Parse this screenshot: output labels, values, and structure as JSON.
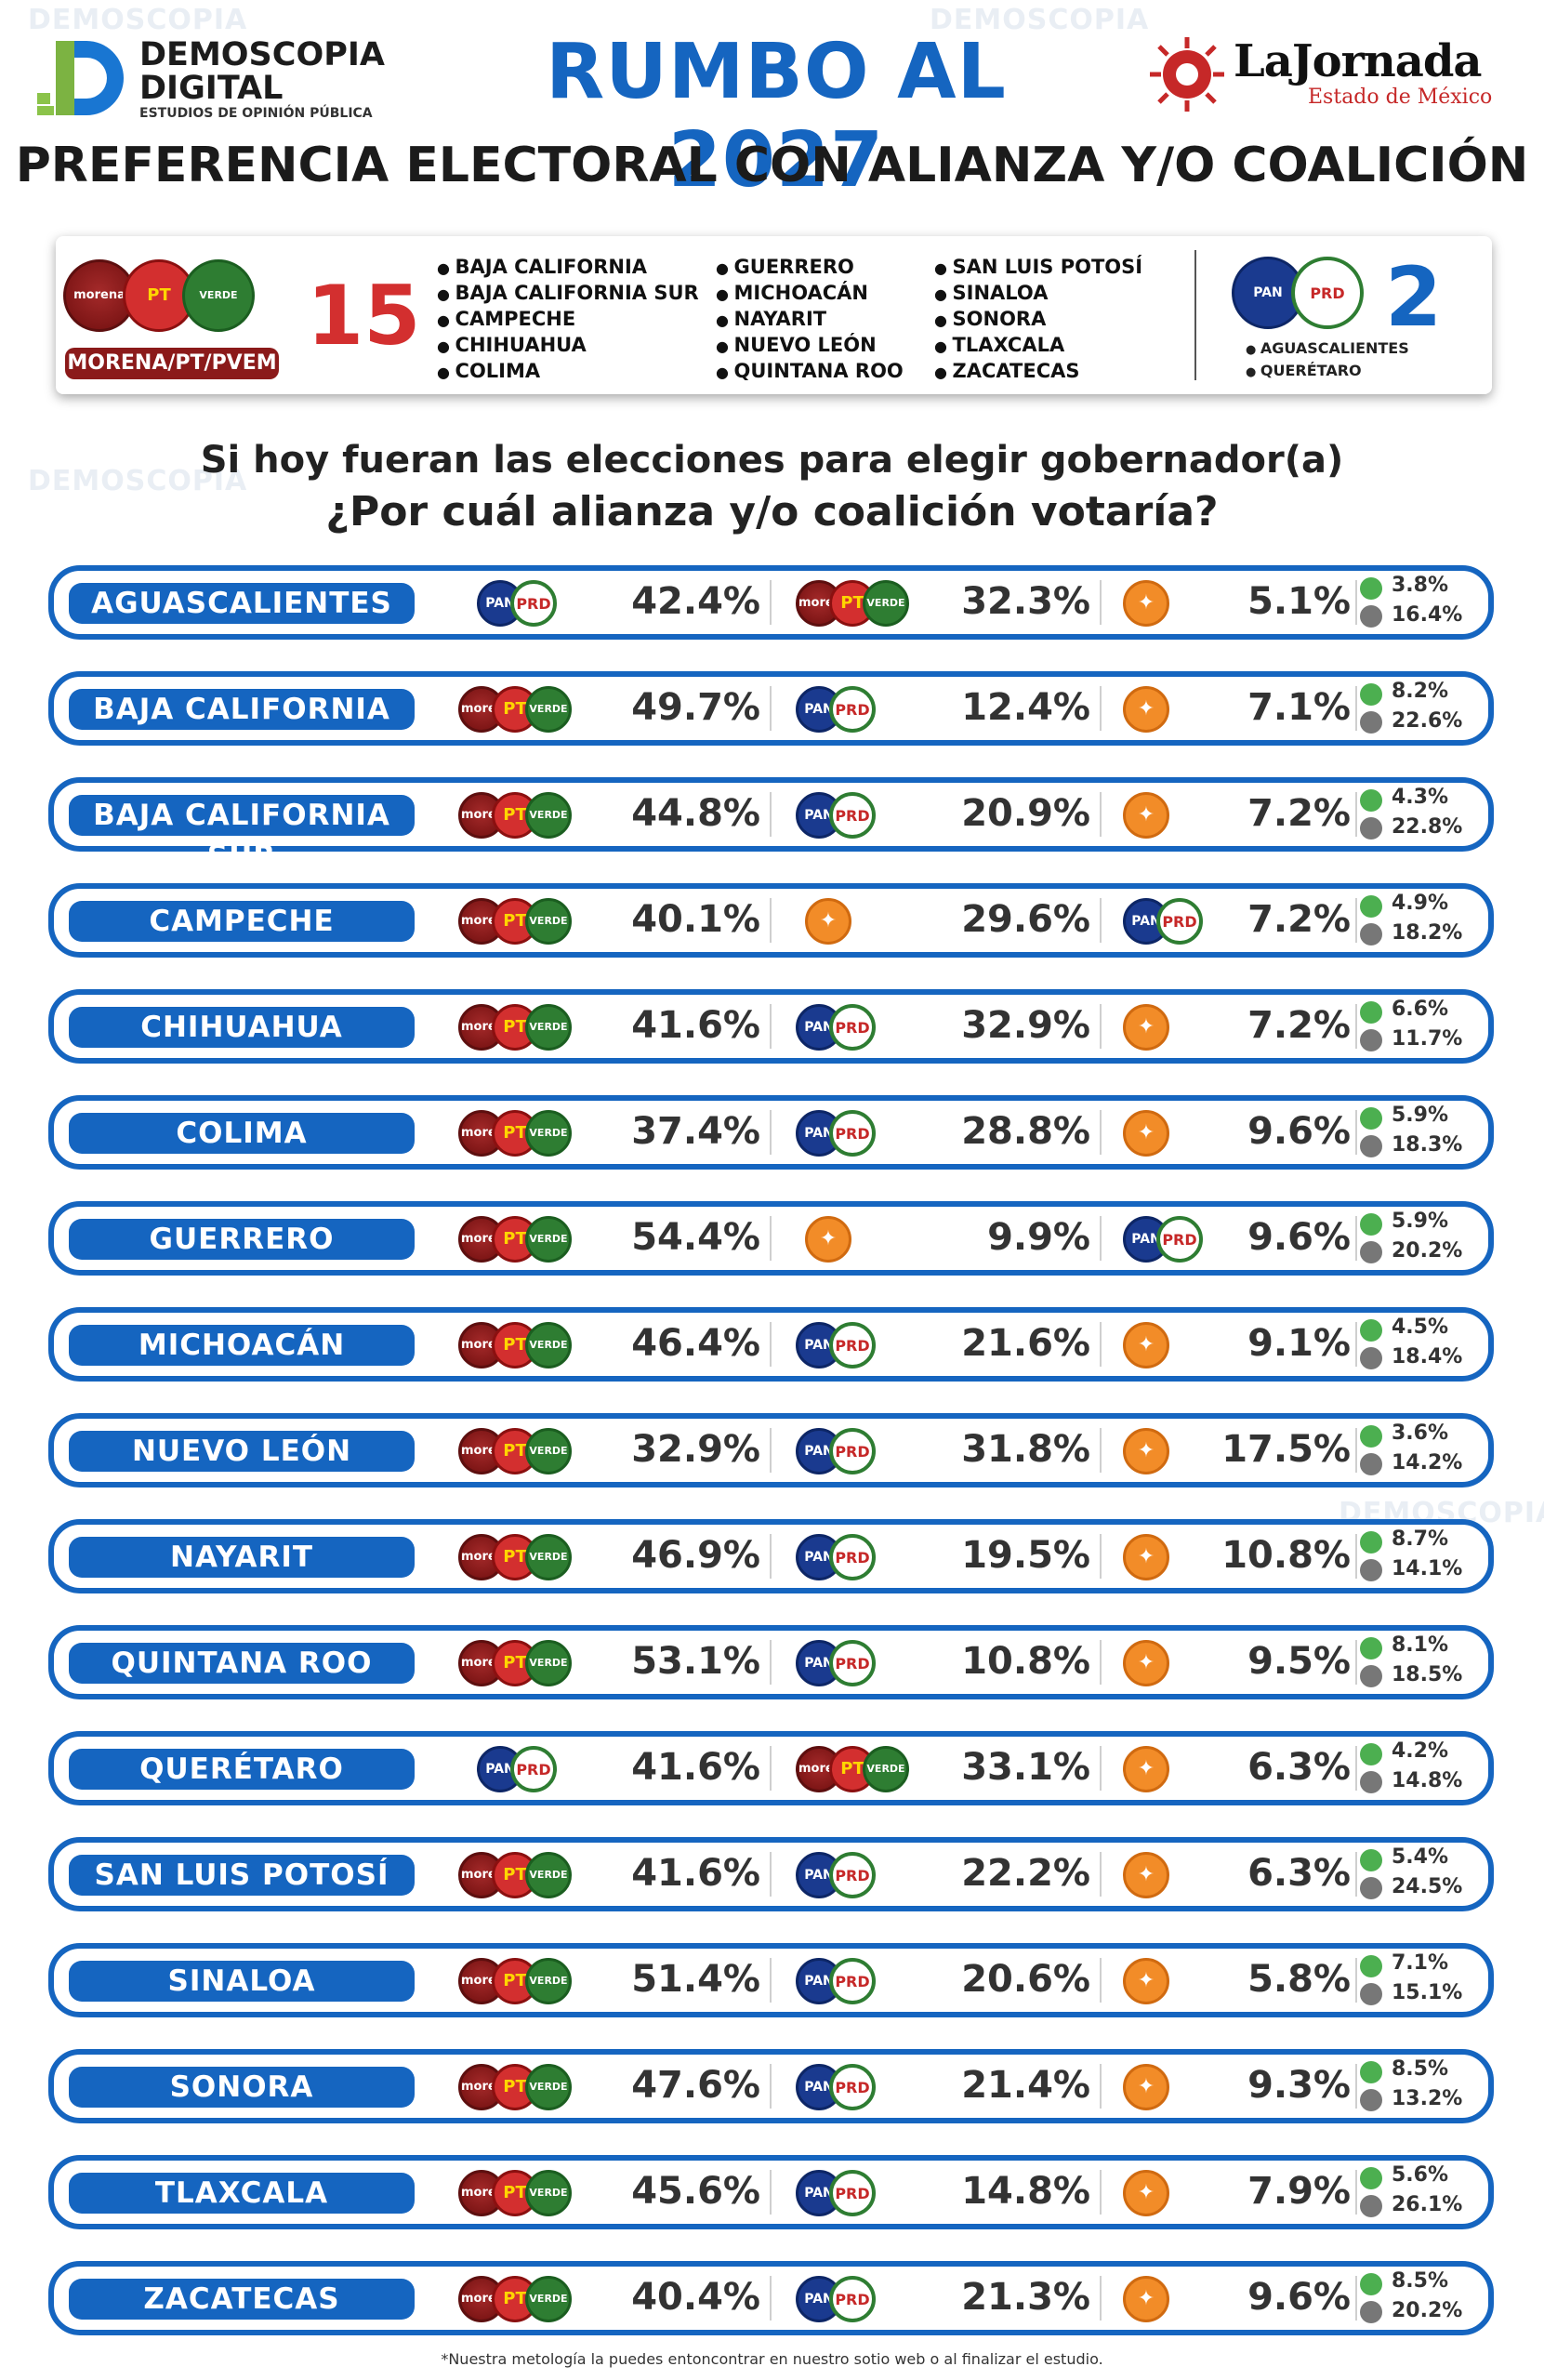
{
  "header": {
    "brand_line1": "DEMOSCOPIA",
    "brand_line2": "DIGITAL",
    "brand_sub": "ESTUDIOS DE OPINIÓN PÚBLICA",
    "title": "RUMBO AL 2027",
    "partner_name": "LaJornada",
    "partner_sub": "Estado de México",
    "subtitle": "PREFERENCIA ELECTORAL CON ALIANZA Y/O COALICIÓN"
  },
  "colors": {
    "brand_blue": "#1565c0",
    "morena": "#8b1a1a",
    "pt": "#d32f2f",
    "verde": "#2e7d32",
    "pan": "#1a3a8f",
    "mc": "#f28c28"
  },
  "summary": {
    "left_label": "MORENA/PT/PVEM",
    "left_count": "15",
    "col1": [
      "BAJA CALIFORNIA",
      "BAJA CALIFORNIA SUR",
      "CAMPECHE",
      "CHIHUAHUA",
      "COLIMA"
    ],
    "col2": [
      "GUERRERO",
      "MICHOACÁN",
      "NAYARIT",
      "NUEVO LEÓN",
      "QUINTANA ROO"
    ],
    "col3": [
      "SAN LUIS POTOSÍ",
      "SINALOA",
      "SONORA",
      "TLAXCALA",
      "ZACATECAS"
    ],
    "right_count": "2",
    "right_list": [
      "AGUASCALIENTES",
      "QUERÉTARO"
    ]
  },
  "question": {
    "line1": "Si hoy fueran las elecciones para elegir gobernador(a)",
    "line2": "¿Por cuál alianza y/o coalición votaría?"
  },
  "logo_text": {
    "morena": "morena",
    "pt": "PT",
    "verde": "VERDE",
    "pan": "PAN",
    "prd": "PRD",
    "mc": "✦"
  },
  "chart_data": {
    "type": "table",
    "columns": [
      "state",
      "first",
      "second",
      "third",
      "other",
      "undecided"
    ],
    "rows": [
      {
        "state": "AGUASCALIENTES",
        "first": {
          "party": "PAN/PRD",
          "value": "42.4%"
        },
        "second": {
          "party": "MORENA/PT/PVEM",
          "value": "32.3%"
        },
        "third": {
          "party": "MC",
          "value": "5.1%"
        },
        "other": "3.8%",
        "undecided": "16.4%"
      },
      {
        "state": "BAJA CALIFORNIA",
        "first": {
          "party": "MORENA/PT/PVEM",
          "value": "49.7%"
        },
        "second": {
          "party": "PAN/PRD",
          "value": "12.4%"
        },
        "third": {
          "party": "MC",
          "value": "7.1%"
        },
        "other": "8.2%",
        "undecided": "22.6%"
      },
      {
        "state": "BAJA CALIFORNIA SUR",
        "first": {
          "party": "MORENA/PT/PVEM",
          "value": "44.8%"
        },
        "second": {
          "party": "PAN/PRD",
          "value": "20.9%"
        },
        "third": {
          "party": "MC",
          "value": "7.2%"
        },
        "other": "4.3%",
        "undecided": "22.8%"
      },
      {
        "state": "CAMPECHE",
        "first": {
          "party": "MORENA/PT/PVEM",
          "value": "40.1%"
        },
        "second": {
          "party": "MC",
          "value": "29.6%"
        },
        "third": {
          "party": "PAN/PRD",
          "value": "7.2%"
        },
        "other": "4.9%",
        "undecided": "18.2%"
      },
      {
        "state": "CHIHUAHUA",
        "first": {
          "party": "MORENA/PT/PVEM",
          "value": "41.6%"
        },
        "second": {
          "party": "PAN/PRD",
          "value": "32.9%"
        },
        "third": {
          "party": "MC",
          "value": "7.2%"
        },
        "other": "6.6%",
        "undecided": "11.7%"
      },
      {
        "state": "COLIMA",
        "first": {
          "party": "MORENA/PT/PVEM",
          "value": "37.4%"
        },
        "second": {
          "party": "PAN/PRD",
          "value": "28.8%"
        },
        "third": {
          "party": "MC",
          "value": "9.6%"
        },
        "other": "5.9%",
        "undecided": "18.3%"
      },
      {
        "state": "GUERRERO",
        "first": {
          "party": "MORENA/PT/PVEM",
          "value": "54.4%"
        },
        "second": {
          "party": "MC",
          "value": "9.9%"
        },
        "third": {
          "party": "PAN/PRD",
          "value": "9.6%"
        },
        "other": "5.9%",
        "undecided": "20.2%"
      },
      {
        "state": "MICHOACÁN",
        "first": {
          "party": "MORENA/PT/PVEM",
          "value": "46.4%"
        },
        "second": {
          "party": "PAN/PRD",
          "value": "21.6%"
        },
        "third": {
          "party": "MC",
          "value": "9.1%"
        },
        "other": "4.5%",
        "undecided": "18.4%"
      },
      {
        "state": "NUEVO LEÓN",
        "first": {
          "party": "MORENA/PT/PVEM",
          "value": "32.9%"
        },
        "second": {
          "party": "PAN/PRD",
          "value": "31.8%"
        },
        "third": {
          "party": "MC",
          "value": "17.5%"
        },
        "other": "3.6%",
        "undecided": "14.2%"
      },
      {
        "state": "NAYARIT",
        "first": {
          "party": "MORENA/PT/PVEM",
          "value": "46.9%"
        },
        "second": {
          "party": "PAN/PRD",
          "value": "19.5%"
        },
        "third": {
          "party": "MC",
          "value": "10.8%"
        },
        "other": "8.7%",
        "undecided": "14.1%"
      },
      {
        "state": "QUINTANA ROO",
        "first": {
          "party": "MORENA/PT/PVEM",
          "value": "53.1%"
        },
        "second": {
          "party": "PAN/PRD",
          "value": "10.8%"
        },
        "third": {
          "party": "MC",
          "value": "9.5%"
        },
        "other": "8.1%",
        "undecided": "18.5%"
      },
      {
        "state": "QUERÉTARO",
        "first": {
          "party": "PAN/PRD",
          "value": "41.6%"
        },
        "second": {
          "party": "MORENA/PT/PVEM",
          "value": "33.1%"
        },
        "third": {
          "party": "MC",
          "value": "6.3%"
        },
        "other": "4.2%",
        "undecided": "14.8%"
      },
      {
        "state": "SAN LUIS POTOSÍ",
        "first": {
          "party": "MORENA/PT/PVEM",
          "value": "41.6%"
        },
        "second": {
          "party": "PAN/PRD",
          "value": "22.2%"
        },
        "third": {
          "party": "MC",
          "value": "6.3%"
        },
        "other": "5.4%",
        "undecided": "24.5%"
      },
      {
        "state": "SINALOA",
        "first": {
          "party": "MORENA/PT/PVEM",
          "value": "51.4%"
        },
        "second": {
          "party": "PAN/PRD",
          "value": "20.6%"
        },
        "third": {
          "party": "MC",
          "value": "5.8%"
        },
        "other": "7.1%",
        "undecided": "15.1%"
      },
      {
        "state": "SONORA",
        "first": {
          "party": "MORENA/PT/PVEM",
          "value": "47.6%"
        },
        "second": {
          "party": "PAN/PRD",
          "value": "21.4%"
        },
        "third": {
          "party": "MC",
          "value": "9.3%"
        },
        "other": "8.5%",
        "undecided": "13.2%"
      },
      {
        "state": "TLAXCALA",
        "first": {
          "party": "MORENA/PT/PVEM",
          "value": "45.6%"
        },
        "second": {
          "party": "PAN/PRD",
          "value": "14.8%"
        },
        "third": {
          "party": "MC",
          "value": "7.9%"
        },
        "other": "5.6%",
        "undecided": "26.1%"
      },
      {
        "state": "ZACATECAS",
        "first": {
          "party": "MORENA/PT/PVEM",
          "value": "40.4%"
        },
        "second": {
          "party": "PAN/PRD",
          "value": "21.3%"
        },
        "third": {
          "party": "MC",
          "value": "9.6%"
        },
        "other": "8.5%",
        "undecided": "20.2%"
      }
    ]
  },
  "footnote": "*Nuestra metología la puedes entoncontrar en nuestro sotio web o al finalizar el estudio."
}
